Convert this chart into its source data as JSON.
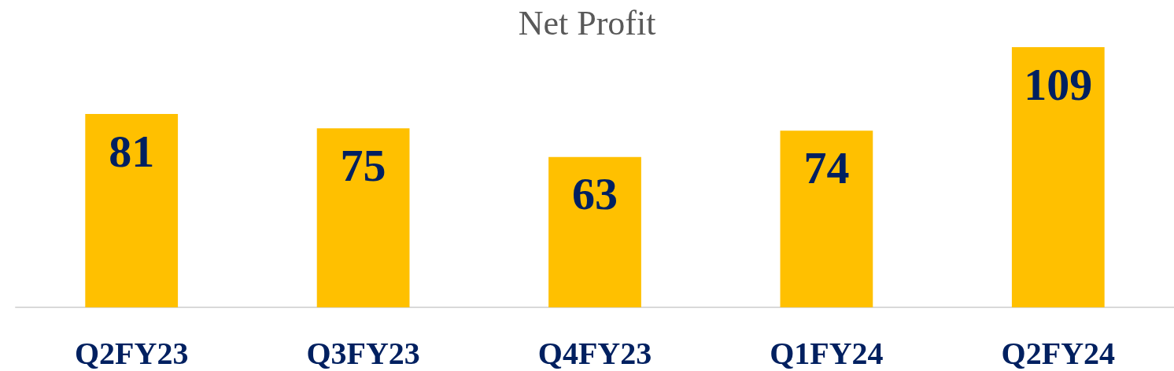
{
  "chart_data": {
    "type": "bar",
    "title": "Net Profit",
    "categories": [
      "Q2FY23",
      "Q3FY23",
      "Q4FY23",
      "Q1FY24",
      "Q2FY24"
    ],
    "values": [
      81,
      75,
      63,
      74,
      109
    ],
    "color": "#ffc000",
    "data_labels": true
  }
}
